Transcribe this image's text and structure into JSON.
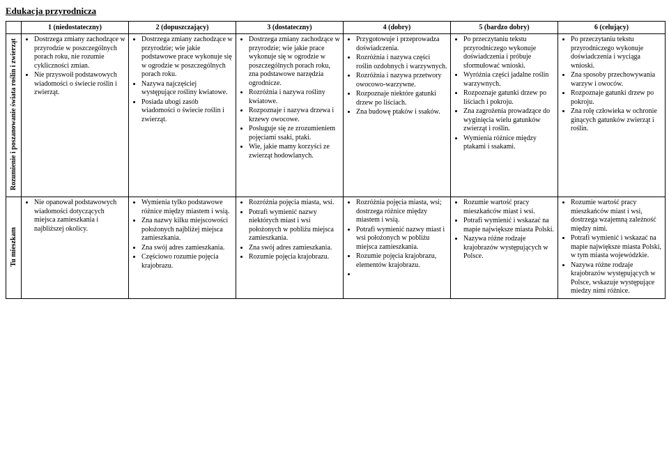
{
  "title": "Edukacja przyrodnicza",
  "headers": {
    "h1": "1 (niedostateczny)",
    "h2": "2 (dopuszczający)",
    "h3": "3 (dostateczny)",
    "h4": "4 (dobry)",
    "h5": "5 (bardzo dobry)",
    "h6": "6 (celujący)"
  },
  "rows": [
    {
      "label": "Rozumienie i poszanowanie świata roślin i zwierząt",
      "cells": [
        [
          "Dostrzega zmiany zachodzące w przyrodzie w poszczególnych porach roku, nie rozumie cykliczności zmian.",
          "Nie przyswoił podstawowych wiadomości o świecie roślin i zwierząt."
        ],
        [
          "Dostrzega zmiany zachodzące w przyrodzie; wie jakie podstawowe prace wykonuje się w ogrodzie w poszczególnych porach roku.",
          "Nazywa najczęściej występujące rośliny kwiatowe.",
          "Posiada ubogi zasób wiadomości o świecie roślin i zwierząt."
        ],
        [
          "Dostrzega zmiany zachodzące w przyrodzie; wie jakie prace wykonuje się w ogrodzie w poszczególnych porach roku, zna podstawowe narzędzia ogrodnicze.",
          "Rozróżnia i nazywa rośliny kwiatowe.",
          "Rozpoznaje i nazywa drzewa i krzewy owocowe.",
          "Posługuje się ze zrozumieniem pojęciami ssaki, ptaki.",
          "Wie, jakie mamy korzyści ze zwierząt hodowlanych."
        ],
        [
          "Przygotowuje i przeprowadza doświadczenia.",
          "Rozróżnia i nazywa części roślin ozdobnych i warzywnych.",
          "Rozróżnia i nazywa przetwory owocowo-warzywne.",
          "Rozpoznaje niektóre gatunki drzew po liściach.",
          "Zna budowę ptaków i ssaków."
        ],
        [
          "Po przeczytaniu tekstu przyrodniczego wykonuje doświadczenia i próbuje sformułować wnioski.",
          "Wyróżnia części jadalne roślin warzywnych.",
          "Rozpoznaje gatunki drzew po liściach i pokroju.",
          "Zna zagrożenia prowadzące do wyginięcia wielu gatunków zwierząt i roślin.",
          "Wymienia różnice między ptakami i ssakami."
        ],
        [
          "Po przeczytaniu tekstu przyrodniczego wykonuje doświadczenia i wyciąga wnioski.",
          "Zna sposoby przechowywania warzyw i owoców.",
          "Rozpoznaje gatunki drzew po pokroju.",
          "Zna rolę człowieka w ochronie ginących gatunków zwierząt i roślin."
        ]
      ]
    },
    {
      "label": "Tu mieszkam",
      "cells": [
        [
          "Nie opanował podstawowych wiadomości dotyczących miejsca zamieszkania i najbliższej okolicy."
        ],
        [
          "Wymienia tylko podstawowe różnice między miastem i wsią.",
          "Zna nazwy kilku miejscowości położonych najbliżej miejsca zamieszkania.",
          "Zna swój adres zamieszkania.",
          "Częściowo rozumie pojęcia krajobrazu."
        ],
        [
          "Rozróżnia pojęcia miasta, wsi.",
          "Potrafi wymienić nazwy niektórych miast i wsi położonych w pobliżu miejsca zamieszkania.",
          "Zna swój adres zamieszkania.",
          "Rozumie pojęcia krajobrazu."
        ],
        [
          "Rozróżnia pojęcia miasta, wsi; dostrzega różnice między miastem i wsią.",
          "Potrafi wymienić nazwy miast i wsi położonych w pobliżu miejsca zamieszkania.",
          "Rozumie pojęcia krajobrazu, elementów krajobrazu.",
          ""
        ],
        [
          "Rozumie wartość pracy mieszkańców miast i wsi.",
          "Potrafi wymienić i wskazać na mapie największe miasta Polski.",
          "Nazywa różne rodzaje krajobrazów występujących w Polsce."
        ],
        [
          "Rozumie wartość pracy mieszkańców miast i wsi, dostrzega wzajemną zależność między nimi.",
          "Potrafi wymienić i wskazać na mapie największe miasta Polski, w tym miasta wojewódzkie.",
          "Nazywa różne rodzaje krajobrazów występujących w Polsce, wskazuje występujące miedzy nimi różnice."
        ]
      ]
    }
  ]
}
